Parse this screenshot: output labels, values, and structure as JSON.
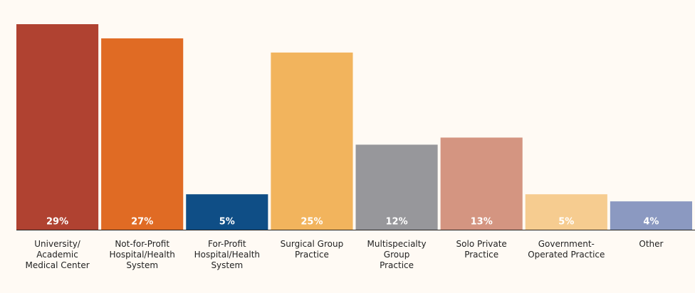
{
  "chart_data": {
    "type": "bar",
    "categories": [
      "University/\nAcademic\nMedical Center",
      "Not-for-Profit\nHospital/Health\nSystem",
      "For-Profit\nHospital/Health\nSystem",
      "Surgical Group\nPractice",
      "Multispecialty\nGroup\nPractice",
      "Solo Private\nPractice",
      "Government-\nOperated Practice",
      "Other"
    ],
    "values": [
      29,
      27,
      5,
      25,
      12,
      13,
      5,
      4
    ],
    "value_labels": [
      "29%",
      "27%",
      "5%",
      "25%",
      "12%",
      "13%",
      "5%",
      "4%"
    ],
    "colors": [
      "#b04231",
      "#e06b24",
      "#0f4e86",
      "#f2b45d",
      "#97979b",
      "#d49581",
      "#f6cc90",
      "#8b99c1"
    ]
  }
}
